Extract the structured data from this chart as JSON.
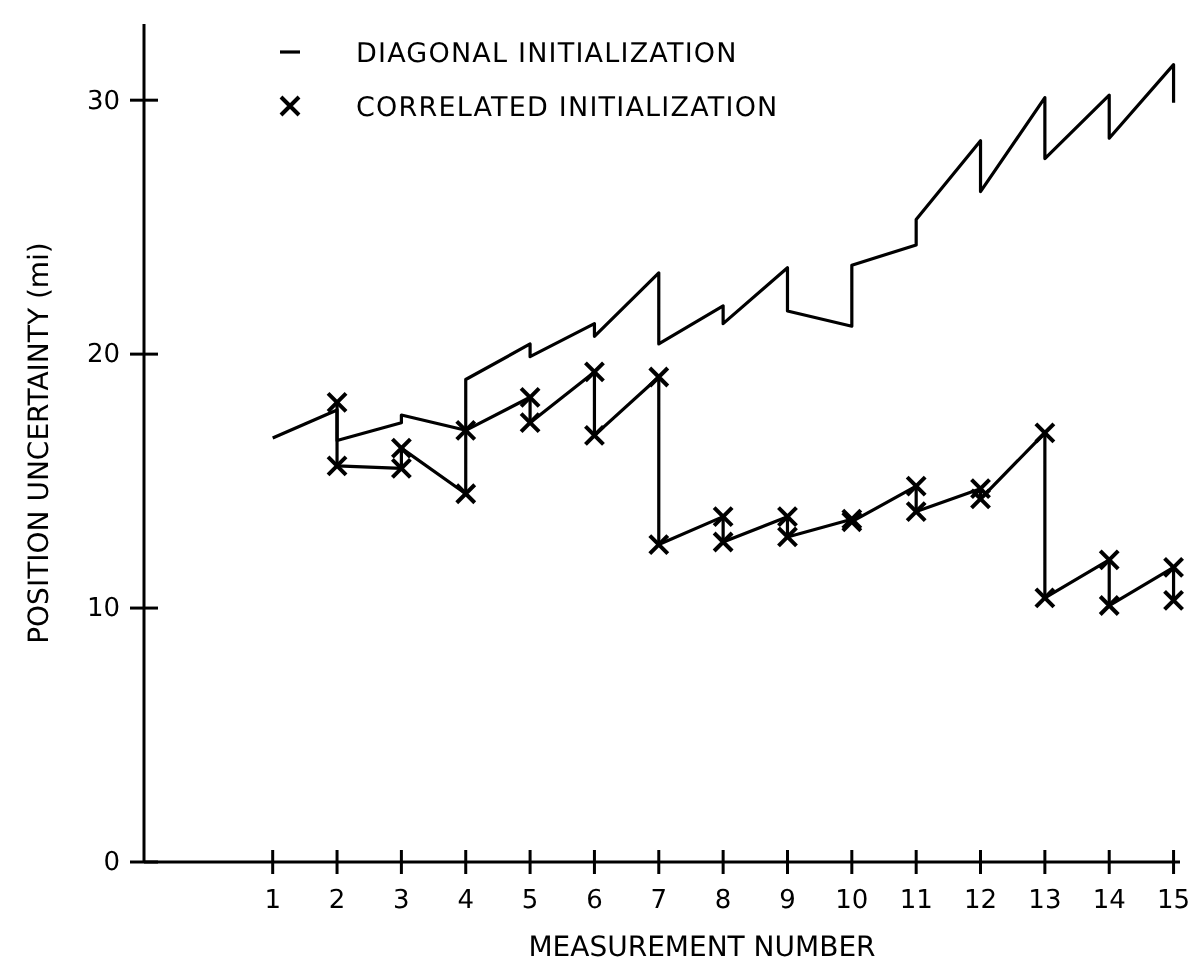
{
  "chart_data": {
    "type": "line",
    "xlabel": "MEASUREMENT NUMBER",
    "ylabel": "POSITION UNCERTAINTY  (mi)",
    "xlim": [
      -1,
      15.1
    ],
    "xticks": [
      1,
      2,
      3,
      4,
      5,
      6,
      7,
      8,
      9,
      10,
      11,
      12,
      13,
      14,
      15
    ],
    "ylim": [
      0,
      33
    ],
    "yticks": [
      0,
      10,
      20,
      30
    ],
    "grid": false,
    "legend": "top left",
    "line_style": "solid",
    "series": [
      {
        "name": "DIAGONAL INITIALIZATION",
        "color": "#000000",
        "marker": "none",
        "x": [
          1,
          2,
          2,
          3,
          3,
          4,
          4,
          5,
          5,
          6,
          6,
          7,
          7,
          8,
          8,
          9,
          9,
          10,
          10,
          11,
          11,
          12,
          12,
          13,
          13,
          14,
          14,
          15,
          15
        ],
        "values": [
          16.7,
          17.8,
          16.6,
          17.3,
          17.6,
          17.0,
          19.0,
          20.4,
          19.9,
          21.2,
          20.7,
          23.2,
          20.4,
          21.9,
          21.2,
          23.4,
          21.7,
          21.1,
          23.5,
          24.3,
          25.3,
          28.4,
          26.4,
          30.1,
          27.7,
          30.2,
          28.5,
          31.4,
          29.9
        ]
      },
      {
        "name": "CORRELATED INITIALIZATION",
        "color": "#000000",
        "marker": "cross",
        "x": [
          2,
          2,
          3,
          3,
          4,
          4,
          5,
          5,
          6,
          6,
          7,
          7,
          8,
          8,
          9,
          9,
          10,
          10,
          11,
          11,
          12,
          12,
          13,
          13,
          14,
          14,
          15,
          15
        ],
        "values": [
          18.1,
          15.6,
          15.5,
          16.3,
          14.5,
          17.0,
          18.3,
          17.3,
          19.3,
          16.8,
          19.1,
          12.5,
          13.6,
          12.6,
          13.6,
          12.8,
          13.5,
          13.4,
          14.8,
          13.8,
          14.7,
          14.3,
          16.9,
          10.4,
          11.9,
          10.1,
          11.6,
          10.3
        ]
      }
    ]
  }
}
